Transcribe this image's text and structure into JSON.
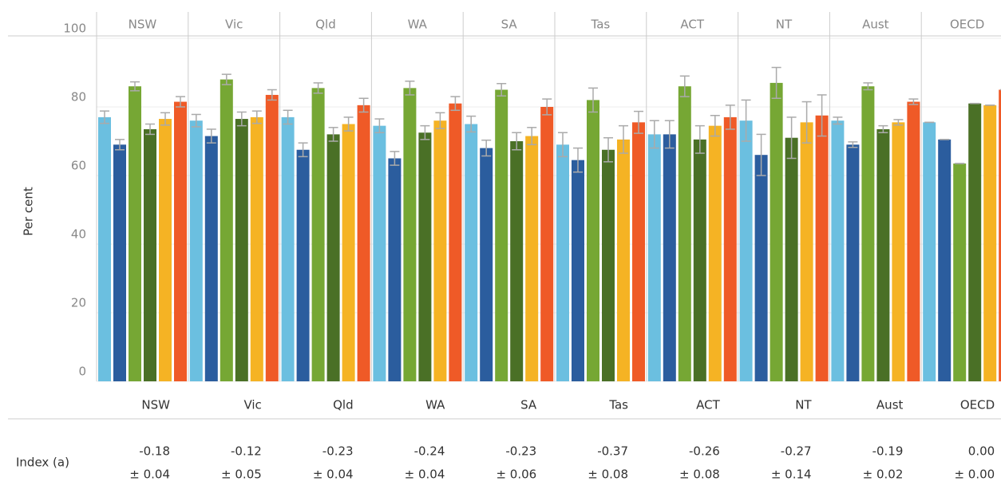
{
  "chart_data": {
    "type": "bar",
    "y_label": "Per cent",
    "categories": [
      "NSW",
      "Vic",
      "Qld",
      "WA",
      "SA",
      "Tas",
      "ACT",
      "NT",
      "Aust",
      "OECD"
    ],
    "ylim": [
      0,
      100
    ],
    "yticks": [
      0,
      20,
      40,
      60,
      80,
      100
    ],
    "grid": true,
    "series": [
      {
        "color": "#6bbfe0",
        "values": [
          77,
          76,
          77,
          74.5,
          75,
          69,
          72,
          76,
          76,
          75.5
        ],
        "errors": [
          1.8,
          1.8,
          2,
          2,
          2.3,
          3.5,
          4,
          6,
          1,
          0
        ]
      },
      {
        "color": "#2b5d9e",
        "values": [
          69,
          71.5,
          67.5,
          65,
          68,
          64.5,
          72,
          66,
          69,
          70.5
        ],
        "errors": [
          1.5,
          2,
          2,
          2,
          2.3,
          3.5,
          4,
          6,
          0.8,
          0
        ]
      },
      {
        "color": "#76a734",
        "values": [
          86,
          88,
          85.5,
          85.5,
          85,
          82,
          86,
          87,
          86,
          63.5
        ],
        "errors": [
          1.3,
          1.5,
          1.5,
          2,
          1.8,
          3.5,
          3,
          4.5,
          1,
          0
        ]
      },
      {
        "color": "#4a7026",
        "values": [
          73.5,
          76.5,
          72,
          72.5,
          70,
          67.5,
          70.5,
          71,
          73.5,
          81
        ],
        "errors": [
          1.5,
          2,
          2,
          2,
          2.5,
          3.5,
          4,
          6,
          1,
          0
        ]
      },
      {
        "color": "#f5b324",
        "values": [
          76.5,
          77,
          75,
          76,
          71.5,
          70.5,
          74.5,
          75.5,
          75.5,
          80.5
        ],
        "errors": [
          1.8,
          1.8,
          2,
          2.3,
          2.5,
          4,
          3,
          6,
          0.8,
          0
        ]
      },
      {
        "color": "#ef5a27",
        "values": [
          81.5,
          83.5,
          80.5,
          81,
          80,
          75.5,
          77,
          77.5,
          81.5,
          85
        ],
        "errors": [
          1.5,
          1.5,
          2,
          2,
          2.3,
          3.2,
          3.5,
          6,
          0.8,
          0
        ]
      }
    ]
  },
  "table": {
    "columns": [
      "NSW",
      "Vic",
      "Qld",
      "WA",
      "SA",
      "Tas",
      "ACT",
      "NT",
      "Aust",
      "OECD"
    ],
    "row_label": "Index (a)",
    "index": [
      "-0.18",
      "-0.12",
      "-0.23",
      "-0.24",
      "-0.23",
      "-0.37",
      "-0.26",
      "-0.27",
      "-0.19",
      "0.00"
    ],
    "margin": [
      "± 0.04",
      "± 0.05",
      "± 0.04",
      "± 0.04",
      "± 0.06",
      "± 0.08",
      "± 0.08",
      "± 0.14",
      "± 0.02",
      "± 0.00"
    ]
  }
}
